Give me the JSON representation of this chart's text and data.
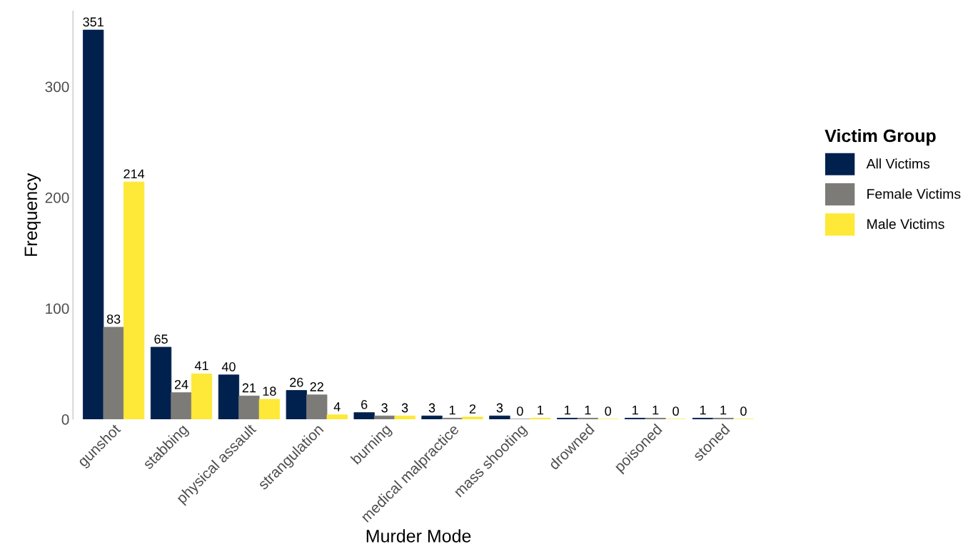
{
  "chart_data": {
    "type": "bar",
    "xlabel": "Murder Mode",
    "ylabel": "Frequency",
    "legend_title": "Victim Group",
    "legend": "right",
    "categories": [
      "gunshot",
      "stabbing",
      "physical assault",
      "strangulation",
      "burning",
      "medical malpractice",
      "mass shooting",
      "drowned",
      "poisoned",
      "stoned"
    ],
    "series": [
      {
        "name": "All Victims",
        "color": "#00204d",
        "values": [
          351,
          65,
          40,
          26,
          6,
          3,
          3,
          1,
          1,
          1
        ]
      },
      {
        "name": "Female Victims",
        "color": "#7c7b78",
        "values": [
          83,
          24,
          21,
          22,
          3,
          1,
          0,
          1,
          1,
          1
        ]
      },
      {
        "name": "Male Victims",
        "color": "#fee838",
        "values": [
          214,
          41,
          18,
          4,
          3,
          2,
          1,
          0,
          0,
          0
        ]
      }
    ],
    "ylim": [
      0,
      368
    ],
    "yticks": [
      0,
      100,
      200,
      300
    ],
    "grid": false,
    "data_labels": true
  }
}
